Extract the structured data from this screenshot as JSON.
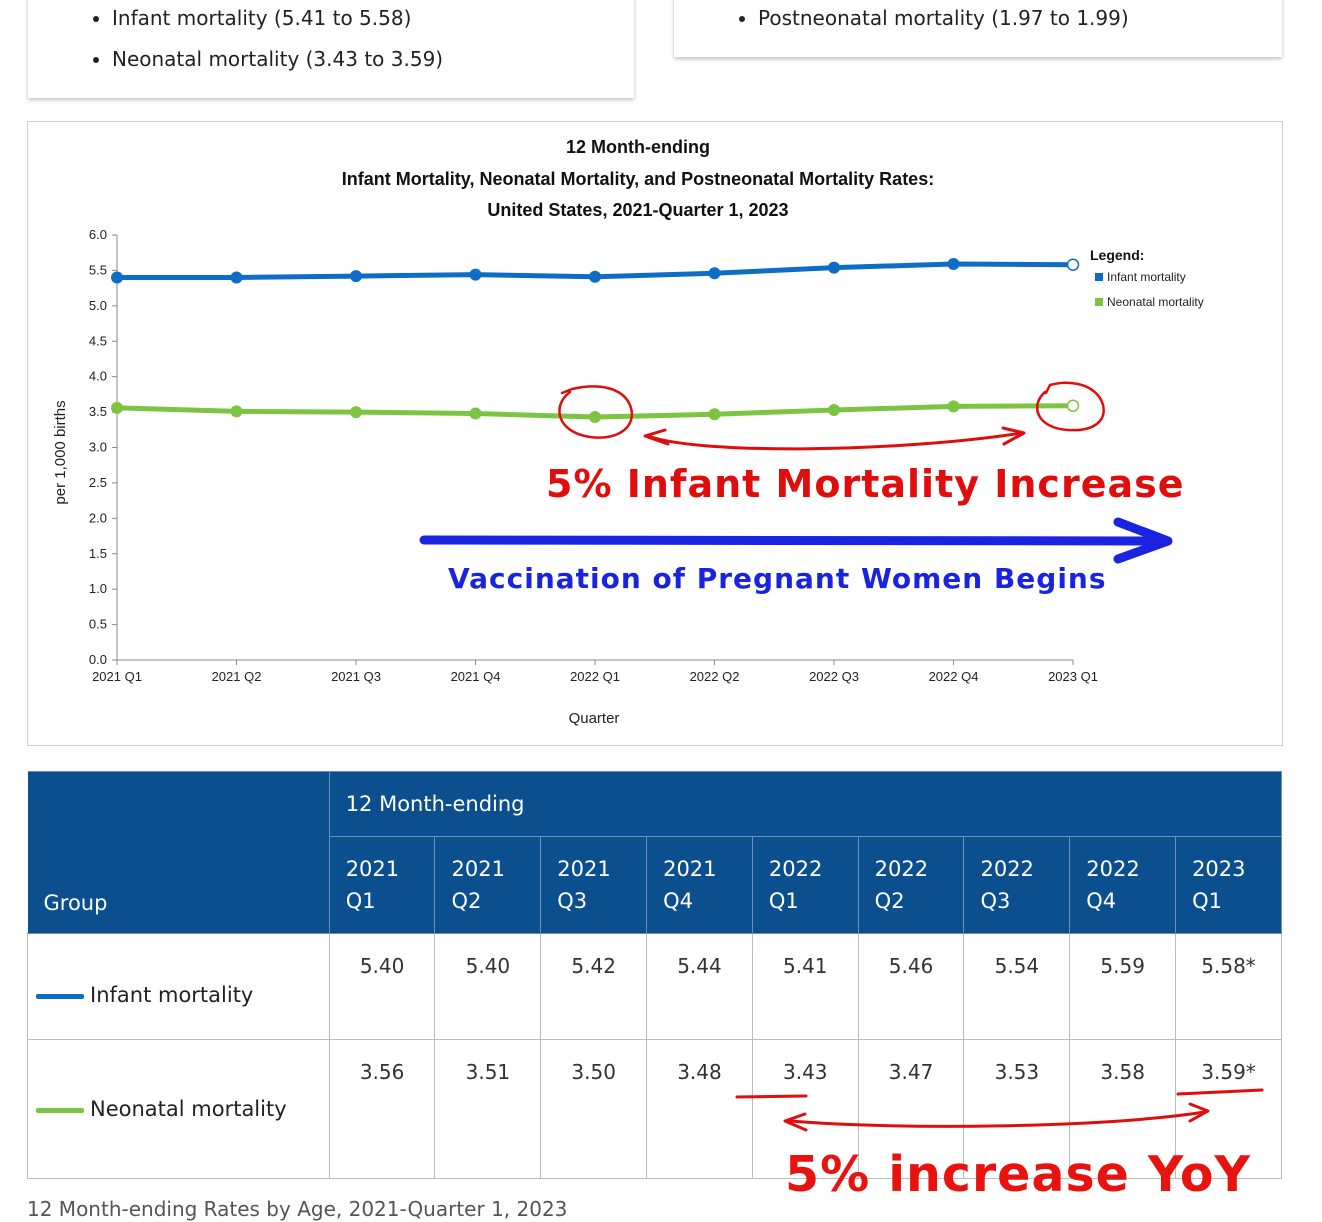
{
  "top_cards": {
    "left_items": [
      "Infant mortality (5.41 to 5.58)",
      "Neonatal mortality (3.43 to 3.59)"
    ],
    "right_items": [
      "Postneonatal mortality (1.97 to 1.99)"
    ]
  },
  "chart_data": {
    "type": "line",
    "title": [
      "12 Month-ending",
      "Infant Mortality, Neonatal Mortality, and Postneonatal Mortality Rates:",
      "United States, 2021-Quarter 1, 2023"
    ],
    "xlabel": "Quarter",
    "ylabel": "per 1,000 births",
    "ylim": [
      0,
      6
    ],
    "yticks": [
      "0.0",
      "0.5",
      "1.0",
      "1.5",
      "2.0",
      "2.5",
      "3.0",
      "3.5",
      "4.0",
      "4.5",
      "5.0",
      "5.5",
      "6.0"
    ],
    "categories": [
      "2021 Q1",
      "2021 Q2",
      "2021 Q3",
      "2021 Q4",
      "2022 Q1",
      "2022 Q2",
      "2022 Q3",
      "2022 Q4",
      "2023 Q1"
    ],
    "legend_title": "Legend:",
    "legend_position": "top-right",
    "series": [
      {
        "name": "Infant mortality",
        "color": "#0e6ec6",
        "values": [
          5.4,
          5.4,
          5.42,
          5.44,
          5.41,
          5.46,
          5.54,
          5.59,
          5.58
        ]
      },
      {
        "name": "Neonatal mortality",
        "color": "#7dc443",
        "values": [
          3.56,
          3.51,
          3.5,
          3.48,
          3.43,
          3.47,
          3.53,
          3.58,
          3.59
        ]
      }
    ]
  },
  "annotations": {
    "chart_red": "5% Infant Mortality Increase",
    "chart_blue": "Vaccination of Pregnant Women Begins",
    "table_red": "5% increase YoY",
    "red_color": "#e00d0d",
    "blue_color": "#1a23e0"
  },
  "table": {
    "group_header": "Group",
    "span_header": "12 Month-ending",
    "columns": [
      [
        "2021",
        "Q1"
      ],
      [
        "2021",
        "Q2"
      ],
      [
        "2021",
        "Q3"
      ],
      [
        "2021",
        "Q4"
      ],
      [
        "2022",
        "Q1"
      ],
      [
        "2022",
        "Q2"
      ],
      [
        "2022",
        "Q3"
      ],
      [
        "2022",
        "Q4"
      ],
      [
        "2023",
        "Q1"
      ]
    ],
    "rows": [
      {
        "group": "Infant mortality",
        "color": "#0e6ec6",
        "values": [
          "5.40",
          "5.40",
          "5.42",
          "5.44",
          "5.41",
          "5.46",
          "5.54",
          "5.59",
          "5.58*"
        ]
      },
      {
        "group": "Neonatal mortality",
        "color": "#7dc443",
        "values": [
          "3.56",
          "3.51",
          "3.50",
          "3.48",
          "3.43",
          "3.47",
          "3.53",
          "3.58",
          "3.59*"
        ]
      }
    ],
    "caption": "12 Month-ending Rates by Age, 2021-Quarter 1, 2023"
  }
}
